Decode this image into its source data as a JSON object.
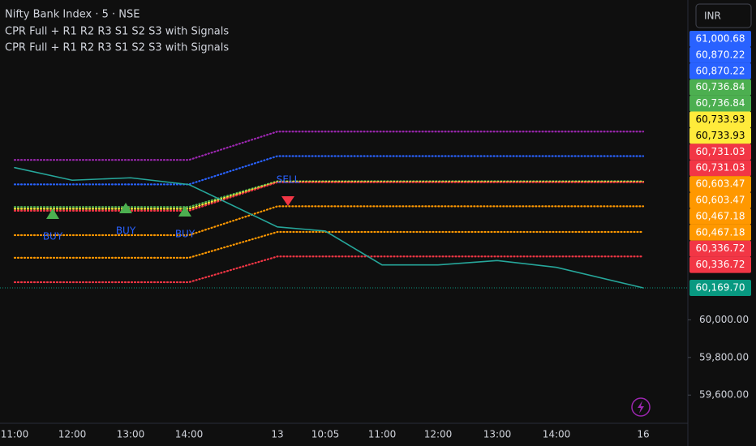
{
  "chart_data": {
    "type": "line",
    "title": "Nifty Bank Index · 5 · NSE",
    "indicators": [
      "CPR Full + R1 R2 R3 S1 S2 S3 with Signals",
      "CPR Full + R1 R2 R3 S1 S2 S3 with Signals"
    ],
    "currency": "INR",
    "categories": [
      "11:00",
      "12:00",
      "13:00",
      "14:00",
      "13",
      "10:05",
      "11:00",
      "12:00",
      "13:00",
      "14:00",
      "16"
    ],
    "series": [
      {
        "color": "#9c27b0",
        "values": [
          60850,
          60850,
          60850,
          60850,
          61000.68,
          61000.68,
          61000.68,
          61000.68,
          61000.68,
          61000.68,
          61000.68
        ]
      },
      {
        "color": "#2962ff",
        "values": [
          60720,
          60720,
          60720,
          60720,
          60870.22,
          60870.22,
          60870.22,
          60870.22,
          60870.22,
          60870.22,
          60870.22
        ]
      },
      {
        "color": "#4caf50",
        "values": [
          60600,
          60600,
          60600,
          60600,
          60736.84,
          60736.84,
          60736.84,
          60736.84,
          60736.84,
          60736.84,
          60736.84
        ]
      },
      {
        "color": "#ffeb3b",
        "values": [
          60590,
          60590,
          60590,
          60590,
          60733.93,
          60733.93,
          60733.93,
          60733.93,
          60733.93,
          60733.93,
          60733.93
        ]
      },
      {
        "color": "#f23645",
        "values": [
          60580,
          60580,
          60580,
          60580,
          60731.03,
          60731.03,
          60731.03,
          60731.03,
          60731.03,
          60731.03,
          60731.03
        ]
      },
      {
        "color": "#ff9800",
        "values": [
          60450,
          60450,
          60450,
          60450,
          60603.47,
          60603.47,
          60603.47,
          60603.47,
          60603.47,
          60603.47,
          60603.47
        ]
      },
      {
        "color": "#ff9800",
        "values": [
          60330,
          60330,
          60330,
          60330,
          60467.18,
          60467.18,
          60467.18,
          60467.18,
          60467.18,
          60467.18,
          60467.18
        ]
      },
      {
        "color": "#f23645",
        "values": [
          60200,
          60200,
          60200,
          60200,
          60336.72,
          60336.72,
          60336.72,
          60336.72,
          60336.72,
          60336.72,
          60336.72
        ]
      },
      {
        "color": "#26a69a",
        "values": [
          60809,
          60742,
          60755,
          60719,
          60494,
          60472,
          60292,
          60292,
          60315,
          60279,
          60169.7
        ]
      }
    ],
    "ylim": [
      59450,
      61700
    ],
    "yticks": [
      {
        "value": 60000,
        "label": "60,000.00"
      },
      {
        "value": 59800,
        "label": "59,800.00"
      },
      {
        "value": 59600,
        "label": "59,600.00"
      }
    ],
    "price_tags": [
      {
        "value": 61000.68,
        "label": "61,000.68",
        "color": "#2962ff"
      },
      {
        "value": 60870.22,
        "label": "60,870.22",
        "color": "#2962ff"
      },
      {
        "value": 60870.22,
        "label": "60,870.22",
        "color": "#2962ff"
      },
      {
        "value": 60736.84,
        "label": "60,736.84",
        "color": "#4caf50"
      },
      {
        "value": 60736.84,
        "label": "60,736.84",
        "color": "#4caf50"
      },
      {
        "value": 60733.93,
        "label": "60,733.93",
        "color": "#ffeb3b"
      },
      {
        "value": 60733.93,
        "label": "60,733.93",
        "color": "#ffeb3b"
      },
      {
        "value": 60731.03,
        "label": "60,731.03",
        "color": "#f23645"
      },
      {
        "value": 60731.03,
        "label": "60,731.03",
        "color": "#f23645"
      },
      {
        "value": 60603.47,
        "label": "60,603.47",
        "color": "#ff9800"
      },
      {
        "value": 60603.47,
        "label": "60,603.47",
        "color": "#ff9800"
      },
      {
        "value": 60467.18,
        "label": "60,467.18",
        "color": "#ff9800"
      },
      {
        "value": 60467.18,
        "label": "60,467.18",
        "color": "#ff9800"
      },
      {
        "value": 60336.72,
        "label": "60,336.72",
        "color": "#f23645"
      },
      {
        "value": 60336.72,
        "label": "60,336.72",
        "color": "#f23645"
      }
    ],
    "last_price": {
      "value": 60169.7,
      "label": "60,169.70",
      "color": "#089981"
    },
    "annotations": [
      "BUY",
      "BUY",
      "BUY",
      "SELL"
    ]
  }
}
